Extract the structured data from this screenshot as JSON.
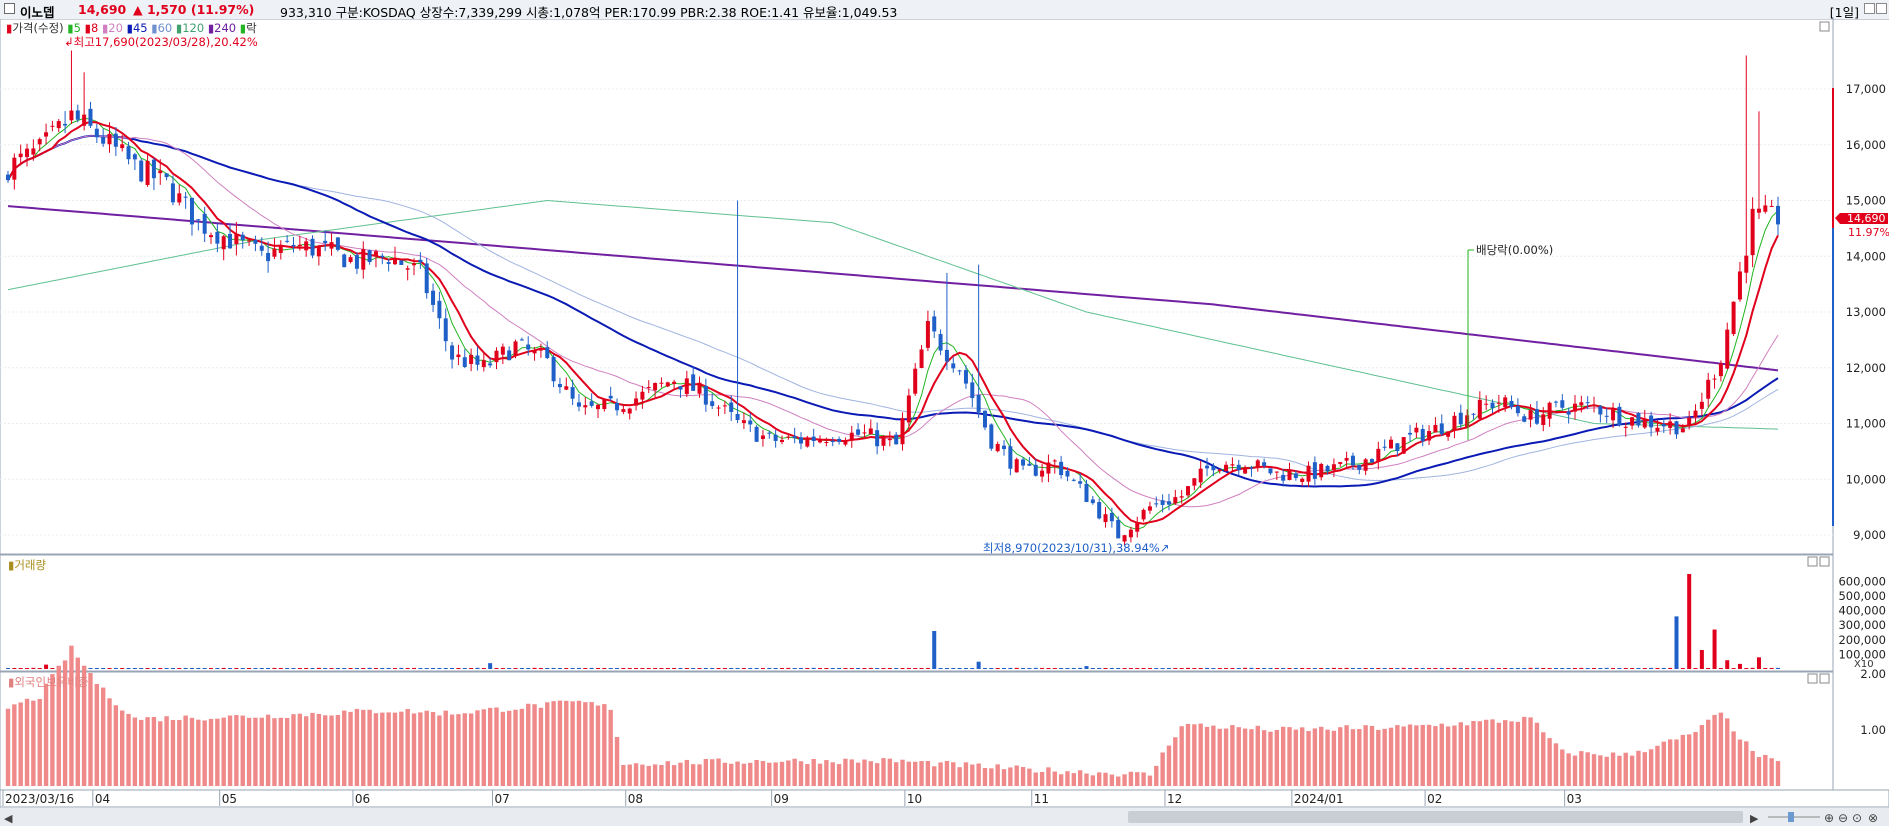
{
  "header": {
    "stock_name": "이노뎁",
    "price": "14,690",
    "change": "▲ 1,570 (11.97%)",
    "info": "933,310  구분:KOSDAQ 상장수:7,339,299 시총:1,078억 PER:170.99 PBR:2.38 ROE:1.41 유보율:1,049.53",
    "period": "[1일]"
  },
  "colors": {
    "up": "#e0001c",
    "down": "#1e5fc8",
    "ma5": "#22b422",
    "ma8": "#e0001c",
    "ma20": "#d080c0",
    "ma45": "#0a1ab4",
    "ma60": "#a0b4e0",
    "ma120": "#60c090",
    "ma240": "#7020a0"
  },
  "price_panel": {
    "legend_items": [
      "가격(수정)",
      "5",
      "8",
      "20",
      "45",
      "60",
      "120",
      "240",
      "락"
    ],
    "high_label": "최고17,690(2023/03/28),20.42%",
    "low_label": "최저8,970(2023/10/31),38.94%",
    "dividend_label": "배당락(0.00%)",
    "y_ticks": [
      "17,000",
      "16,000",
      "15,000",
      "14,000",
      "13,000",
      "12,000",
      "11,000",
      "10,000",
      "9,000"
    ],
    "current_price": "14,690",
    "current_pct": "11.97%"
  },
  "volume_panel": {
    "title": "거래량",
    "y_ticks": [
      "600,000",
      "500,000",
      "400,000",
      "300,000",
      "200,000",
      "100,000"
    ],
    "unit": "X10"
  },
  "foreign_panel": {
    "title": "외국인보유비중",
    "y_ticks": [
      "2.00",
      "1.00"
    ]
  },
  "x_axis": {
    "labels": [
      "2023/03/16",
      "04",
      "05",
      "06",
      "07",
      "08",
      "09",
      "10",
      "11",
      "12",
      "2024/01",
      "02",
      "03"
    ]
  },
  "chart_data": {
    "type": "candlestick",
    "keypoints_close": [
      [
        0,
        15600
      ],
      [
        5,
        15900
      ],
      [
        10,
        16500
      ],
      [
        15,
        16100
      ],
      [
        20,
        15600
      ],
      [
        25,
        15300
      ],
      [
        30,
        14600
      ],
      [
        35,
        14300
      ],
      [
        40,
        14000
      ],
      [
        45,
        14200
      ],
      [
        50,
        14100
      ],
      [
        55,
        13900
      ],
      [
        60,
        14000
      ],
      [
        65,
        13700
      ],
      [
        70,
        12200
      ],
      [
        75,
        12000
      ],
      [
        80,
        12400
      ],
      [
        85,
        12100
      ],
      [
        90,
        11200
      ],
      [
        95,
        11300
      ],
      [
        100,
        11500
      ],
      [
        105,
        11800
      ],
      [
        110,
        11500
      ],
      [
        115,
        11000
      ],
      [
        120,
        10700
      ],
      [
        125,
        10700
      ],
      [
        130,
        10800
      ],
      [
        135,
        10800
      ],
      [
        140,
        10600
      ],
      [
        145,
        12700
      ],
      [
        150,
        12000
      ],
      [
        155,
        10700
      ],
      [
        160,
        10100
      ],
      [
        165,
        10300
      ],
      [
        170,
        9700
      ],
      [
        175,
        9000
      ],
      [
        180,
        9500
      ],
      [
        185,
        9700
      ],
      [
        190,
        10300
      ],
      [
        195,
        10300
      ],
      [
        200,
        10100
      ],
      [
        205,
        10100
      ],
      [
        210,
        10200
      ],
      [
        215,
        10400
      ],
      [
        220,
        10700
      ],
      [
        225,
        10900
      ],
      [
        230,
        11200
      ],
      [
        235,
        11400
      ],
      [
        240,
        11100
      ],
      [
        245,
        11300
      ],
      [
        250,
        11300
      ],
      [
        255,
        11100
      ],
      [
        260,
        11000
      ],
      [
        265,
        10950
      ],
      [
        270,
        12200
      ],
      [
        275,
        14700
      ],
      [
        279,
        14690
      ]
    ],
    "volume_spikes": [
      [
        6,
        30000
      ],
      [
        76,
        40000
      ],
      [
        146,
        260000
      ],
      [
        153,
        50000
      ],
      [
        170,
        20000
      ],
      [
        263,
        360000
      ],
      [
        265,
        650000
      ],
      [
        267,
        130000
      ],
      [
        269,
        270000
      ],
      [
        271,
        60000
      ],
      [
        273,
        35000
      ],
      [
        276,
        80000
      ]
    ],
    "foreign_keypoints": [
      [
        0,
        1.4
      ],
      [
        5,
        1.6
      ],
      [
        10,
        2.45
      ],
      [
        15,
        1.7
      ],
      [
        20,
        1.2
      ],
      [
        40,
        1.25
      ],
      [
        60,
        1.35
      ],
      [
        70,
        1.3
      ],
      [
        80,
        1.4
      ],
      [
        90,
        1.5
      ],
      [
        95,
        1.4
      ],
      [
        97,
        0.4
      ],
      [
        120,
        0.45
      ],
      [
        140,
        0.45
      ],
      [
        160,
        0.3
      ],
      [
        180,
        0.2
      ],
      [
        185,
        1.1
      ],
      [
        200,
        1.0
      ],
      [
        220,
        1.05
      ],
      [
        240,
        1.2
      ],
      [
        245,
        0.6
      ],
      [
        255,
        0.55
      ],
      [
        265,
        0.9
      ],
      [
        270,
        1.3
      ],
      [
        275,
        0.6
      ],
      [
        279,
        0.4
      ]
    ]
  }
}
